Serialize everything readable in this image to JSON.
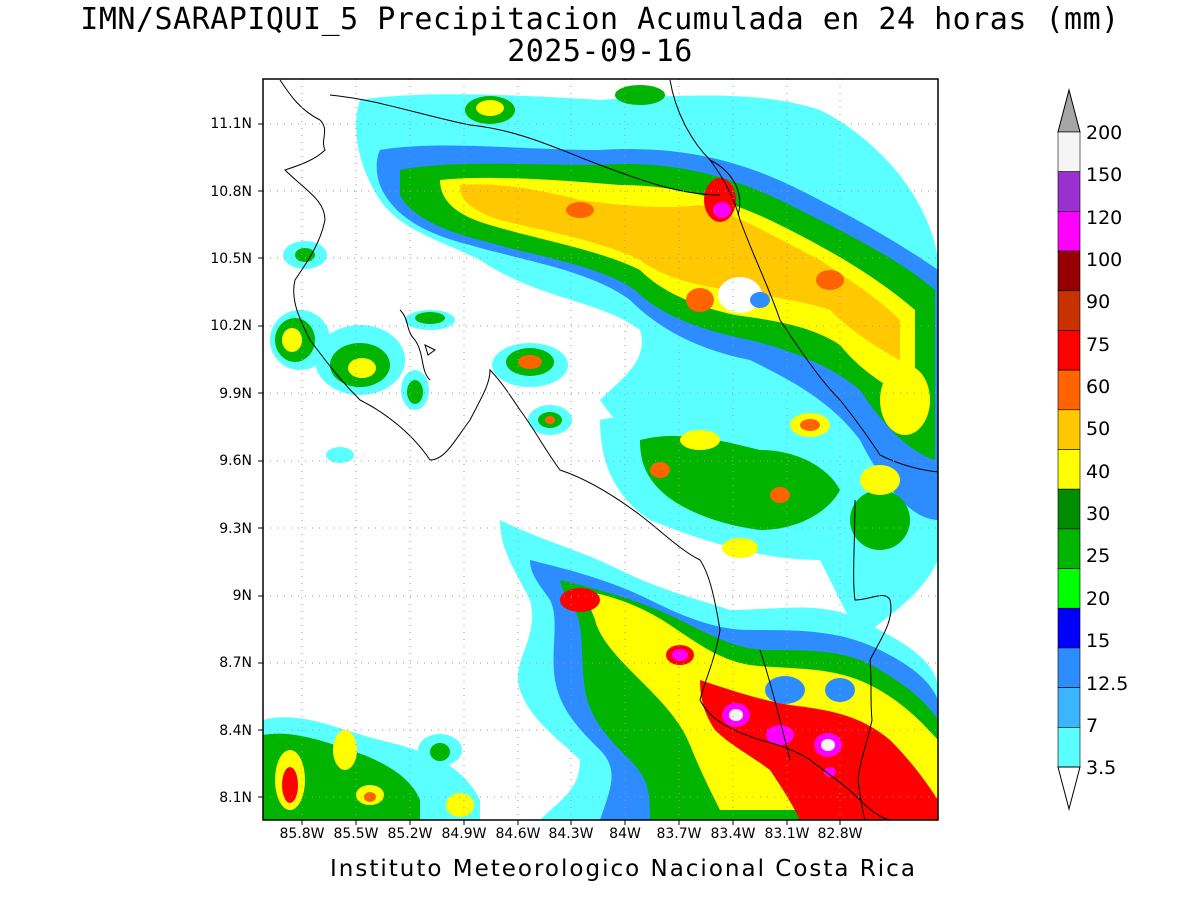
{
  "header": {
    "title": "IMN/SARAPIQUI_5 Precipitacion Acumulada en 24 horas (mm)",
    "date": "2025-09-16"
  },
  "footer": {
    "text": "Instituto Meteorologico Nacional Costa Rica"
  },
  "axes": {
    "lat_labels": [
      "11.1N",
      "10.8N",
      "10.5N",
      "10.2N",
      "9.9N",
      "9.6N",
      "9.3N",
      "9N",
      "8.7N",
      "8.4N",
      "8.1N"
    ],
    "lon_labels": [
      "85.8W",
      "85.5W",
      "85.2W",
      "84.9W",
      "84.6W",
      "84.3W",
      "84W",
      "83.7W",
      "83.4W",
      "83.1W",
      "82.8W"
    ]
  },
  "colorbar": {
    "labels": [
      "200",
      "150",
      "120",
      "100",
      "90",
      "75",
      "60",
      "50",
      "40",
      "30",
      "25",
      "20",
      "15",
      "12.5",
      "7",
      "3.5"
    ],
    "colors": [
      "#a6a6a6",
      "#f5f5f5",
      "#9b30d0",
      "#ff00ff",
      "#960000",
      "#c83200",
      "#ff0000",
      "#ff6400",
      "#ffc800",
      "#ffff00",
      "#008c00",
      "#00b400",
      "#00ff00",
      "#0000ff",
      "#2d8cff",
      "#3cb4ff",
      "#5affff",
      "#ffffff"
    ]
  }
}
